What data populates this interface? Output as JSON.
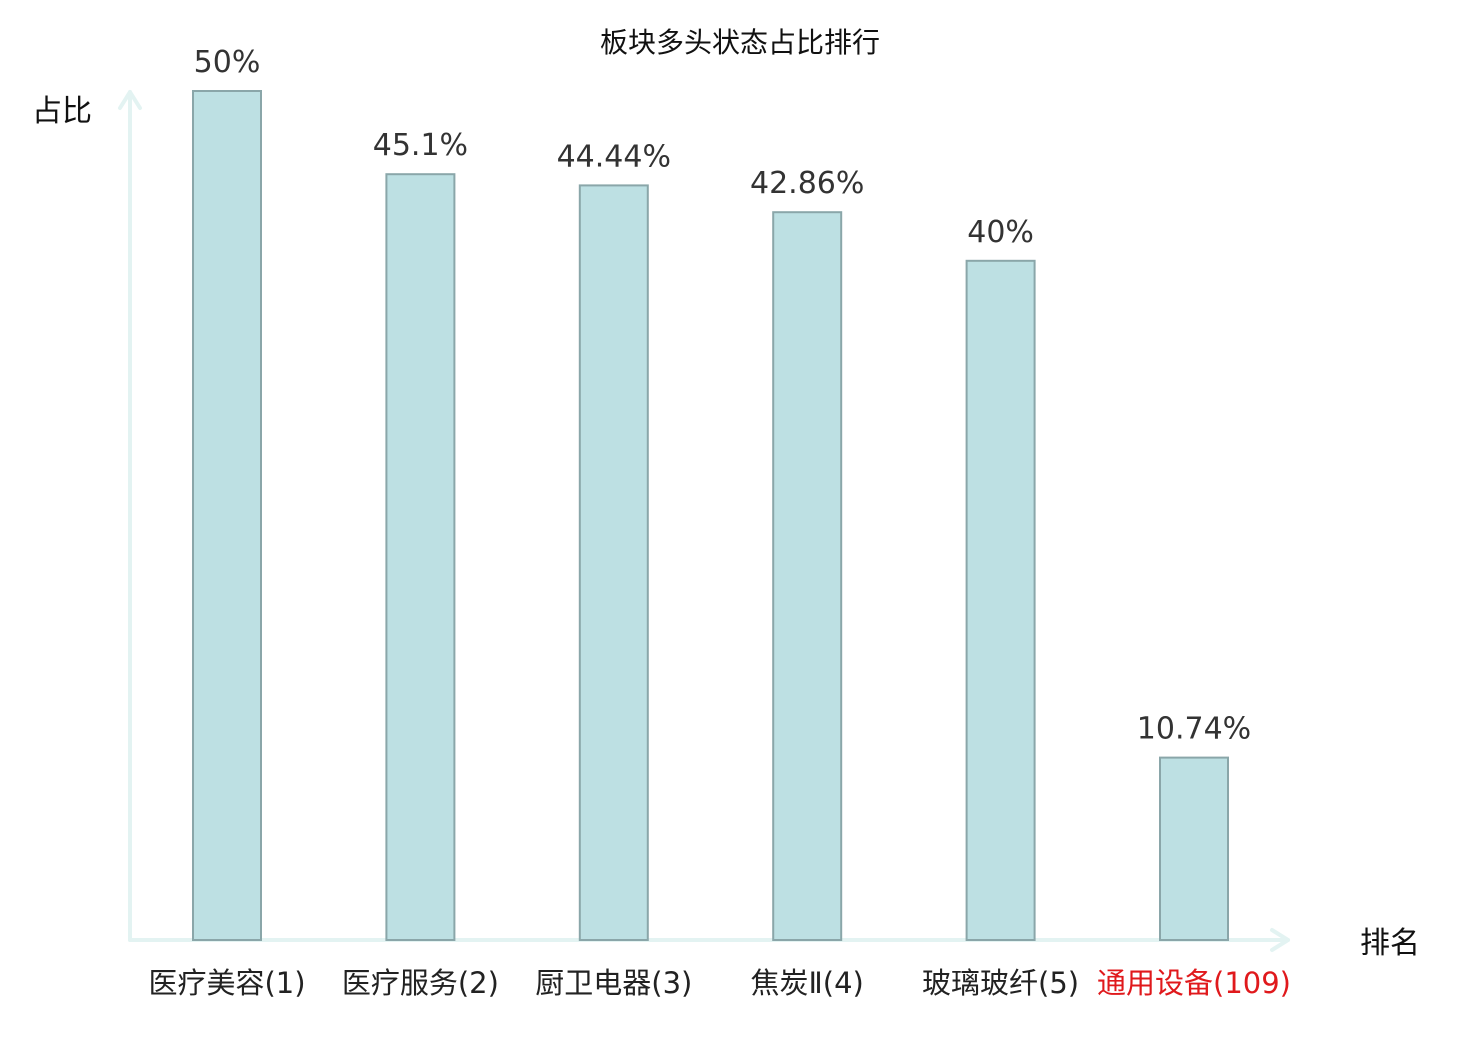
{
  "chart_data": {
    "type": "bar",
    "title": "板块多头状态占比排行",
    "xlabel": "排名",
    "ylabel": "占比",
    "categories": [
      "医疗美容(1)",
      "医疗服务(2)",
      "厨卫电器(3)",
      "焦炭Ⅱ(4)",
      "玻璃玻纤(5)",
      "通用设备(109)"
    ],
    "values": [
      50,
      45.1,
      44.44,
      42.86,
      40,
      10.74
    ],
    "value_labels": [
      "50%",
      "45.1%",
      "44.44%",
      "42.86%",
      "40%",
      "10.74%"
    ],
    "highlight_category_index": 5,
    "ylim": [
      0,
      50
    ],
    "grid": false,
    "legend": "none",
    "colors": {
      "bar_fill": "#bde0e3",
      "bar_stroke": "#8aa6a9",
      "axis": "#e3f3f2",
      "highlight_label": "#e0191c"
    }
  }
}
